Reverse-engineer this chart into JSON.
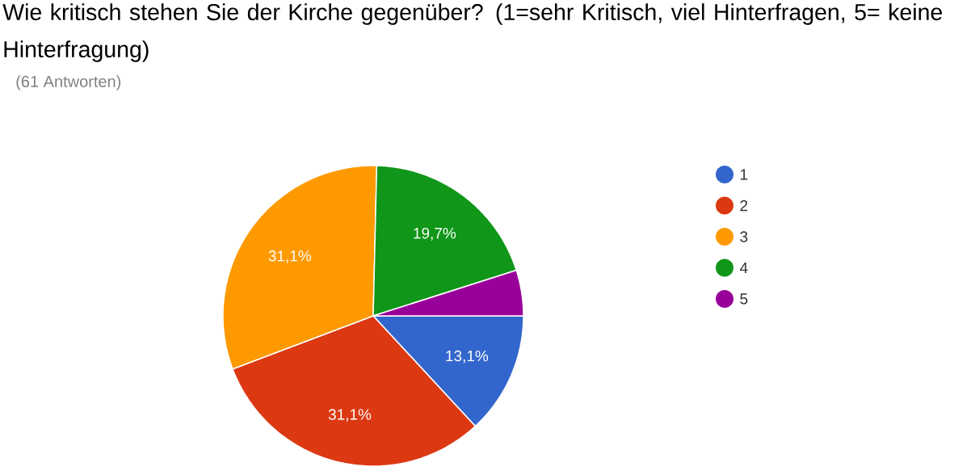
{
  "chart_data": {
    "type": "pie",
    "title": "Wie kritisch stehen Sie der Kirche gegenüber? (1=sehr Kritisch, viel Hinterfragen, 5= keine Hinterfragung)",
    "subtitle": "(61 Antworten)",
    "categories": [
      "1",
      "2",
      "3",
      "4",
      "5"
    ],
    "values": [
      13.1,
      31.1,
      31.1,
      19.7,
      4.9
    ],
    "colors": [
      "#3366cc",
      "#dc3912",
      "#ff9900",
      "#109618",
      "#990099"
    ],
    "value_labels": [
      "13,1%",
      "31,1%",
      "31,1%",
      "19,7%",
      null
    ],
    "legend": "right"
  }
}
